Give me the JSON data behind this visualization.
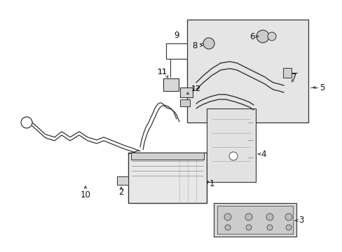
{
  "bg_color": "#ffffff",
  "lc": "#333333",
  "fig_w": 4.89,
  "fig_h": 3.6,
  "dpi": 100
}
